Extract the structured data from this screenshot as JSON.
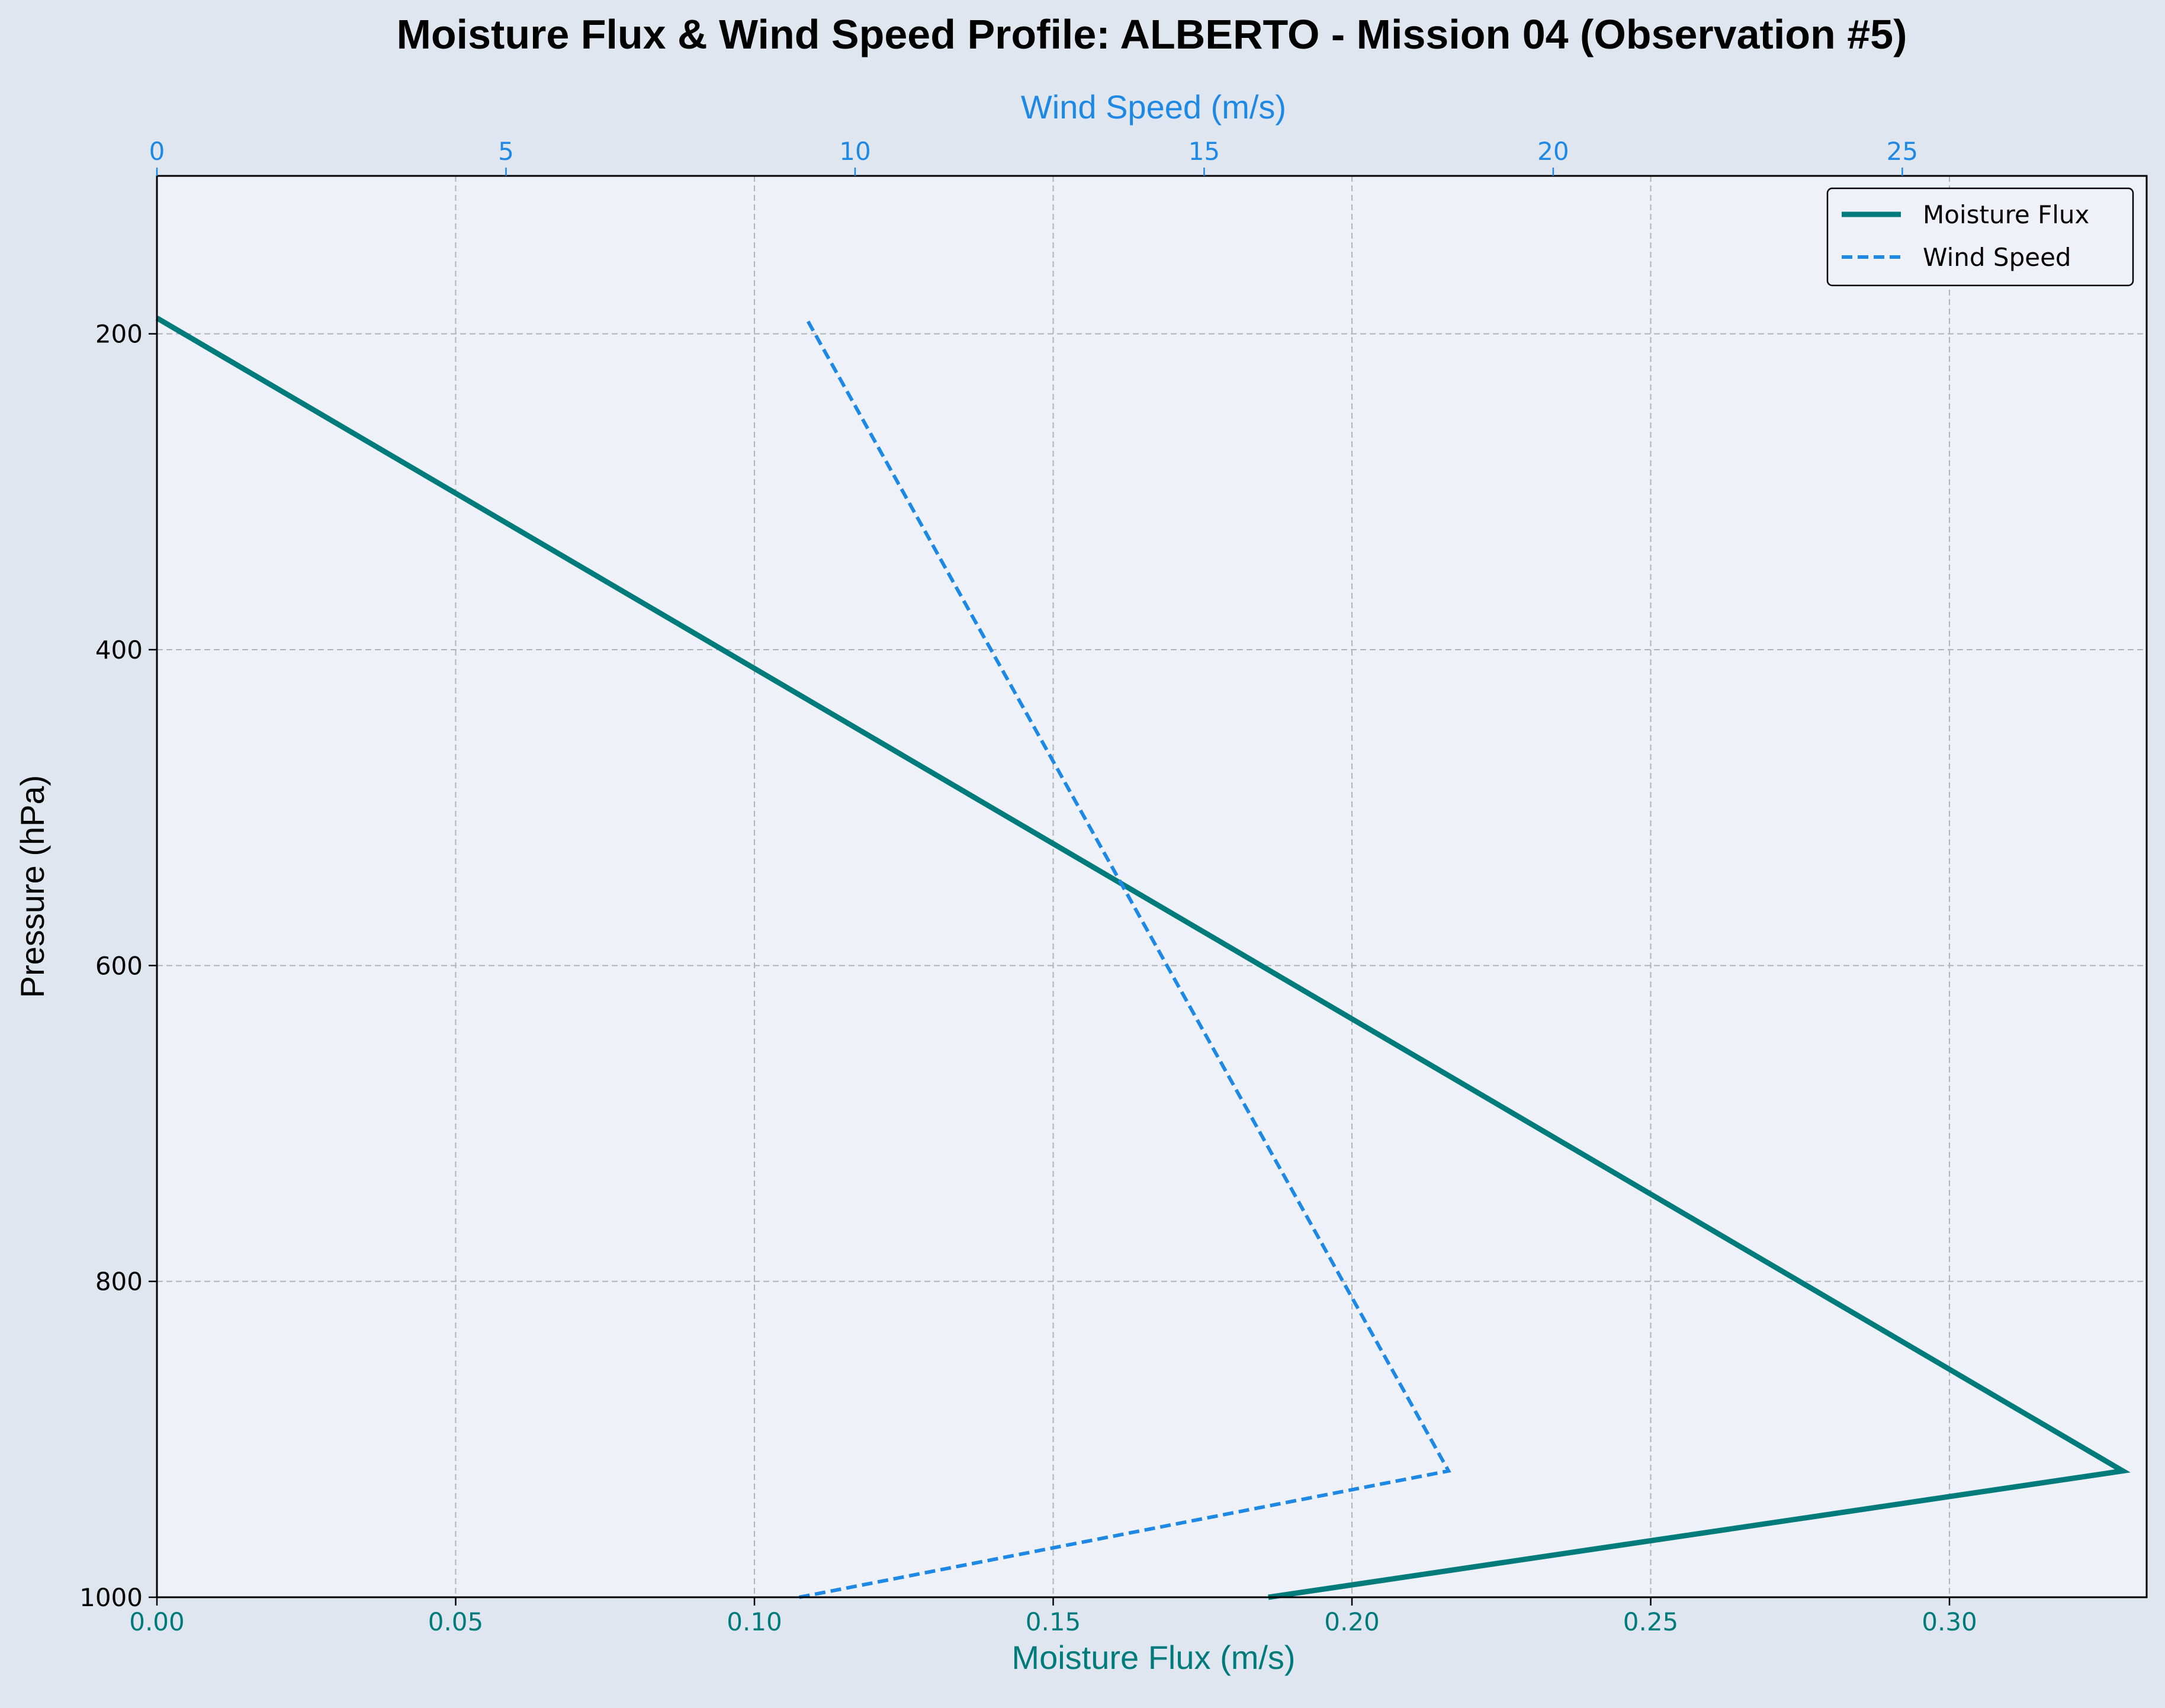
{
  "chart_data": {
    "type": "line",
    "title": "Moisture Flux & Wind Speed Profile: ALBERTO - Mission 04 (Observation #5)",
    "xlabel_bottom": "Moisture Flux (m/s)",
    "xlabel_top": "Wind Speed (m/s)",
    "ylabel": "Pressure (hPa)",
    "y_inverted": true,
    "ylim": [
      1000,
      100
    ],
    "xlim_bottom": [
      0.0,
      0.333
    ],
    "xlim_top": [
      0,
      28.5
    ],
    "x_ticks_bottom": [
      "0.00",
      "0.05",
      "0.10",
      "0.15",
      "0.20",
      "0.25",
      "0.30"
    ],
    "x_ticks_bottom_values": [
      0.0,
      0.05,
      0.1,
      0.15,
      0.2,
      0.25,
      0.3
    ],
    "x_ticks_top": [
      "0",
      "5",
      "10",
      "15",
      "20",
      "25"
    ],
    "x_ticks_top_values": [
      0,
      5,
      10,
      15,
      20,
      25
    ],
    "y_ticks": [
      "200",
      "400",
      "600",
      "800",
      "1000"
    ],
    "y_ticks_values": [
      200,
      400,
      600,
      800,
      1000
    ],
    "grid": true,
    "legend_position": "top-right",
    "series": [
      {
        "name": "Moisture Flux",
        "axis": "bottom",
        "color": "#007b7b",
        "style": "solid",
        "pressure": [
          1000,
          920,
          190
        ],
        "values": [
          0.186,
          0.329,
          0.0
        ]
      },
      {
        "name": "Wind Speed",
        "axis": "top",
        "color": "#1e88e5",
        "style": "dashed",
        "pressure": [
          1000,
          920,
          190
        ],
        "values": [
          9.2,
          18.5,
          9.3
        ]
      }
    ]
  },
  "colors": {
    "page_bg": "#e0e6f0",
    "plot_bg": "#eef2f8",
    "grid": "#b0b4b8",
    "moisture_axis": "#007b7b",
    "wind_axis": "#1e88e5",
    "text": "#000000"
  }
}
